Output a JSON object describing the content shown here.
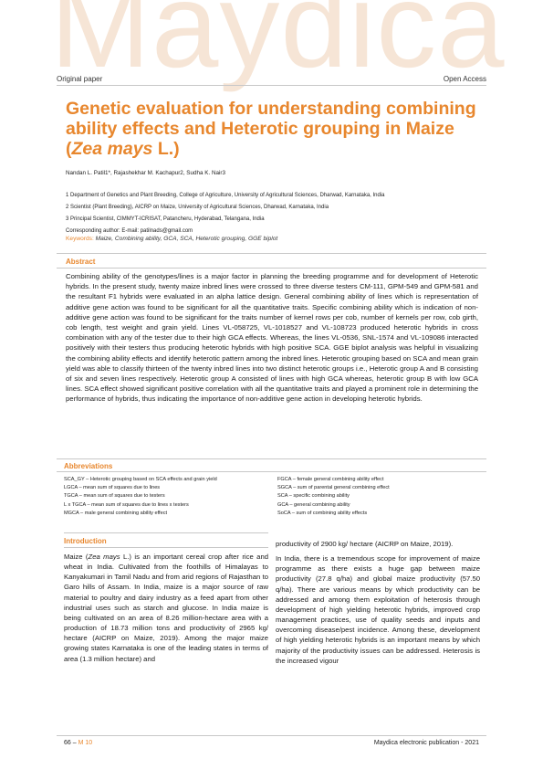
{
  "watermark": "Maydica",
  "header": {
    "left": "Original paper",
    "right": "Open Access"
  },
  "title": {
    "part1": "Genetic evaluation for understanding combining ability effects and Heterotic grouping in Maize (",
    "species": "Zea mays",
    "part2": " L.)"
  },
  "authors": "Nandan L. Patil1*, Rajashekhar M. Kachapur2, Sudha K. Nair3",
  "affiliations": [
    "1 Department of Genetics and Plant Breeding, College of Agriculture, University of Agricultural Sciences, Dharwad, Karnataka, India",
    "2 Scientist (Plant Breeding), AICRP on Maize, University of Agricultural Sciences, Dharwad, Karnataka, India",
    "3 Principal Scientist, CIMMYT-ICRISAT, Patancheru, Hyderabad, Telangana, India",
    "Corresponding author: E-mail: patilnads@gmail.com"
  ],
  "keywords": {
    "label": "Keywords:",
    "text": "Maize, Combining ability, GCA, SCA, Heterotic grouping, GGE biplot"
  },
  "abstract": {
    "heading": "Abstract",
    "text": "Combining ability of the genotypes/lines is a major factor in planning the breeding programme and for development of Heterotic hybrids. In the present study, twenty maize inbred lines were crossed to three diverse testers CM-111, GPM-549 and GPM-581 and the resultant F1 hybrids were evaluated in an alpha lattice design. General combining ability of lines which is representation of additive gene action was found to be significant for all the quantitative traits. Specific combining ability which is indication of non-additive gene action was found to be significant for the traits number of kernel rows per cob, number of kernels per row, cob girth, cob length, test weight and grain yield. Lines VL-058725, VL-1018527 and VL-108723 produced heterotic hybrids in cross combination with any of the tester due to their high GCA effects. Whereas, the lines VL-0536, SNL-1574 and VL-109086 interacted positively with their testers thus producing heterotic hybrids with high positive SCA. GGE biplot analysis was helpful in visualizing the combining ability effects and identify heterotic pattern among the inbred lines. Heterotic grouping based on SCA and mean grain yield was able to classify thirteen of the twenty inbred lines into two distinct heterotic groups i.e., Heterotic group A and B consisting of six and seven lines respectively. Heterotic group A consisted of lines with high GCA whereas, heterotic group B with low GCA lines. SCA effect showed significant positive correlation with all the quantitative traits and played a prominent role in determining the performance of hybrids, thus indicating the importance of non-additive gene action in developing heterotic hybrids."
  },
  "abbreviations": {
    "heading": "Abbreviations",
    "left": [
      "SCA_GY – Heterotic grouping based on SCA effects and grain yield",
      "LGCA – mean sum of squares due to lines",
      "TGCA – mean sum of squares due to testers",
      "L x TGCA – mean sum of squares due to lines x testers",
      "MGCA – male general combining ability effect"
    ],
    "right": [
      "FGCA – female general combining ability effect",
      "SGCA – sum of parental general combining effect",
      "SCA – specific combining ability",
      "GCA – general combining ability",
      "SoCA – sum of combining ability effects"
    ]
  },
  "introduction": {
    "heading": "Introduction",
    "left_p1_a": "Maize (",
    "left_p1_species": "Zea mays",
    "left_p1_b": " L.) is an important cereal crop after rice and wheat in India. Cultivated from the foothills of Himalayas to Kanyakumari in Tamil Nadu and from arid regions of Rajasthan to Garo hills of Assam. In India, maize is a major source of raw material to poultry and dairy industry as a feed apart from other industrial uses such as starch and glucose. In India maize is being cultivated on an area of 8.26 million-hectare area with a production of 18.73 million tons and productivity of 2965 kg/ hectare (AICRP on Maize, 2019). Among the major maize growing states Karnataka is one of the leading states in terms of area (1.3 million hectare) and",
    "right_p1": "productivity of 2900 kg/ hectare (AICRP on Maize, 2019).",
    "right_p2": "In India, there is a tremendous scope for improvement of maize programme as there exists a huge gap between maize productivity (27.8 q/ha) and global maize productivity (57.50 q/ha). There are various means by which productivity can be addressed and among them exploitation of heterosis through development of high yielding heterotic hybrids, improved crop management practices, use of quality seeds and inputs and overcoming disease/pest incidence. Among these, development of high yielding heterotic hybrids is an important means by which majority of the productivity issues can be addressed. Heterosis is the increased vigour"
  },
  "footer": {
    "page": "66 – ",
    "issue": "M 10",
    "right": "Maydica electronic publication - 2021"
  },
  "colors": {
    "accent": "#e8872e",
    "watermark": "#f6e5d6",
    "rule": "#c8c8c8"
  }
}
